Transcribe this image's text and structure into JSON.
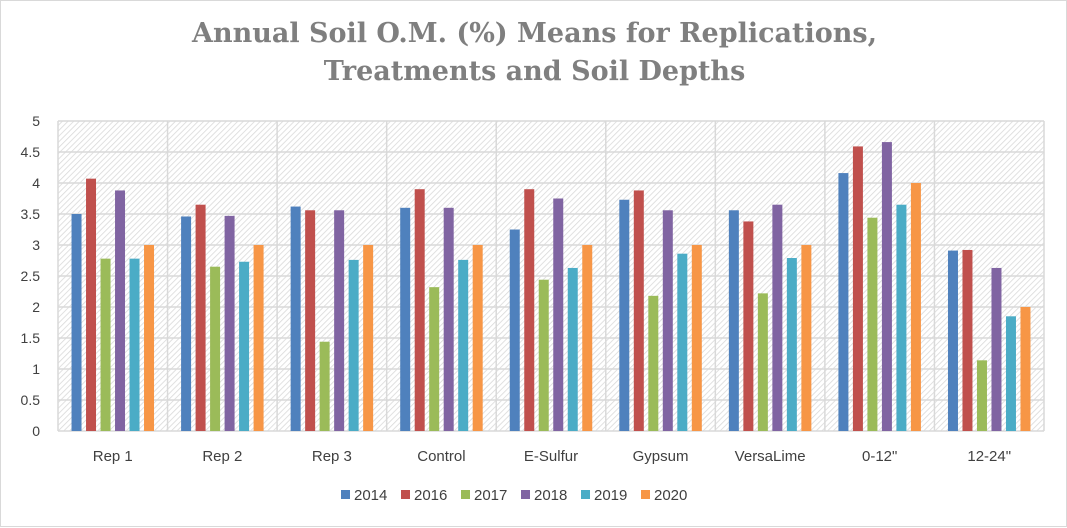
{
  "chart_data": {
    "type": "bar",
    "title_lines": [
      "Annual Soil O.M. (%) Means for Replications,",
      "Treatments and Soil Depths"
    ],
    "categories": [
      "Rep 1",
      "Rep 2",
      "Rep 3",
      "Control",
      "E-Sulfur",
      "Gypsum",
      "VersaLime",
      "0-12\"",
      "12-24\""
    ],
    "ylim": [
      0,
      5
    ],
    "yticks": [
      "0",
      "0.5",
      "1",
      "1.5",
      "2",
      "2.5",
      "3",
      "3.5",
      "4",
      "4.5",
      "5"
    ],
    "grid": true,
    "legend_position": "bottom",
    "series": [
      {
        "name": "2014",
        "color": "#4f81bd",
        "values": [
          3.5,
          3.46,
          3.62,
          3.6,
          3.25,
          3.73,
          3.56,
          4.16,
          2.91
        ]
      },
      {
        "name": "2016",
        "color": "#c0504d",
        "values": [
          4.07,
          3.65,
          3.56,
          3.9,
          3.9,
          3.88,
          3.38,
          4.59,
          2.92
        ]
      },
      {
        "name": "2017",
        "color": "#9bbb59",
        "values": [
          2.78,
          2.65,
          1.44,
          2.32,
          2.44,
          2.18,
          2.22,
          3.44,
          1.14
        ]
      },
      {
        "name": "2018",
        "color": "#8064a2",
        "values": [
          3.88,
          3.47,
          3.56,
          3.6,
          3.75,
          3.56,
          3.65,
          4.66,
          2.63
        ]
      },
      {
        "name": "2019",
        "color": "#4bacc6",
        "values": [
          2.78,
          2.73,
          2.76,
          2.76,
          2.63,
          2.86,
          2.79,
          3.65,
          1.85
        ]
      },
      {
        "name": "2020",
        "color": "#f79646",
        "values": [
          3.0,
          3.0,
          3.0,
          3.0,
          3.0,
          3.0,
          3.0,
          4.0,
          2.0
        ]
      }
    ]
  }
}
